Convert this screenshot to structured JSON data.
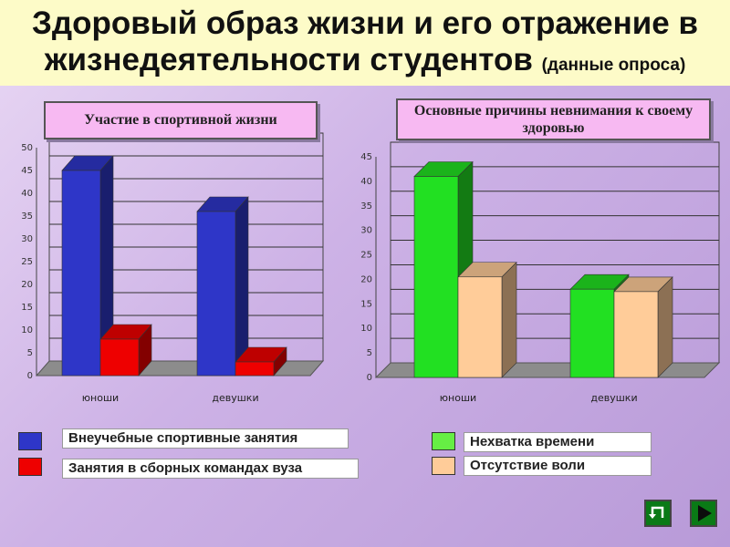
{
  "title": {
    "line1": "Здоровый образ жизни и его отражение в",
    "line2": "жизнедеятельности студентов",
    "note": "(данные опроса)"
  },
  "chart_data": [
    {
      "type": "bar",
      "title": "Участие в спортивной жизни",
      "categories": [
        "юноши",
        "девушки"
      ],
      "series": [
        {
          "name": "Внеучебные спортивные занятия",
          "values": [
            45,
            36
          ],
          "color": "#2e36c8"
        },
        {
          "name": "Занятия в сборных командах вуза",
          "values": [
            8,
            3
          ],
          "color": "#ee0000"
        }
      ],
      "ylim": [
        0,
        50
      ],
      "yticks": [
        0,
        5,
        10,
        15,
        20,
        25,
        30,
        35,
        40,
        45,
        50
      ],
      "grid": true
    },
    {
      "type": "bar",
      "title": "Основные причины невнимания к своему здоровью",
      "categories": [
        "юноши",
        "девушки"
      ],
      "series": [
        {
          "name": "Нехватка времени",
          "values": [
            41,
            18
          ],
          "color": "#22e022"
        },
        {
          "name": "Отсутствие воли",
          "values": [
            20.5,
            17.5
          ],
          "color": "#ffcc99"
        }
      ],
      "ylim": [
        0,
        45
      ],
      "yticks": [
        0,
        5,
        10,
        15,
        20,
        25,
        30,
        35,
        40,
        45
      ],
      "grid": true
    }
  ],
  "legend1": [
    "Внеучебные спортивные занятия",
    "Занятия в сборных командах вуза"
  ],
  "legend2": [
    "Нехватка времени",
    "Отсутствие воли"
  ],
  "colors": {
    "blue": "#2e36c8",
    "red": "#ee0000",
    "green": "#22e022",
    "peach": "#ffcc99",
    "title_bg": "#fdfbc8",
    "chart_title_bg": "#f7b9f2"
  },
  "nav": {
    "back_icon": "return-icon",
    "next_icon": "play-forward-icon"
  }
}
